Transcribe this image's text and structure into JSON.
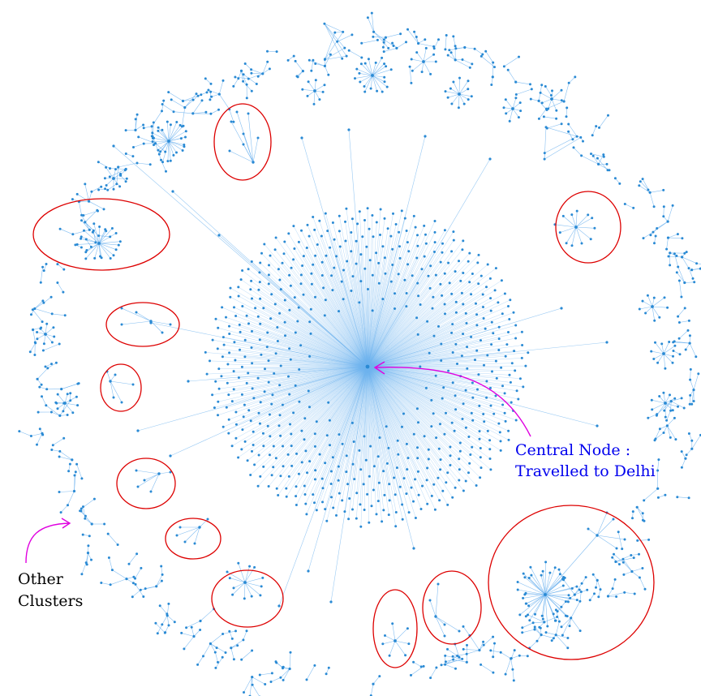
{
  "annotations": {
    "central_node_line1": "Central Node :",
    "central_node_line2": "Travelled to Delhi",
    "other_clusters_line1": "Other",
    "other_clusters_line2": "Clusters"
  },
  "colors": {
    "node": "#2a8ad4",
    "edge": "#6fb3ee",
    "highlight_circle": "#dd0000",
    "arrow": "#e000e0",
    "central_label": "#0000ee",
    "other_label": "#000000"
  }
}
